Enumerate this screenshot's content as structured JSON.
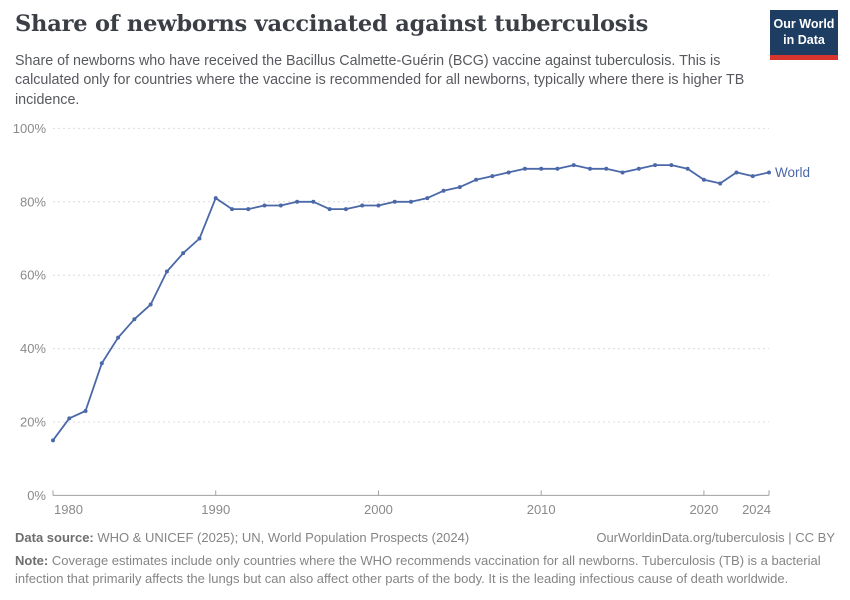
{
  "header": {
    "title": "Share of newborns vaccinated against tuberculosis",
    "subtitle": "Share of newborns who have received the Bacillus Calmette-Guérin (BCG) vaccine against tuberculosis. This is calculated only for countries where the vaccine is recommended for all newborns, typically where there is higher TB incidence.",
    "logo": {
      "line1": "Our World",
      "line2": "in Data"
    }
  },
  "chart_data": {
    "type": "line",
    "title": "Share of newborns vaccinated against tuberculosis",
    "xlabel": "",
    "ylabel": "",
    "xlim": [
      1980,
      2024
    ],
    "ylim": [
      0,
      100
    ],
    "xticks": [
      1980,
      1990,
      2000,
      2010,
      2020,
      2024
    ],
    "yticks": [
      0,
      20,
      40,
      60,
      80,
      100
    ],
    "ytick_suffix": "%",
    "grid": "horizontal-dashed",
    "legend_position": "end-of-line-label",
    "series": [
      {
        "name": "World",
        "color": "#4b68a8",
        "x": [
          1980,
          1981,
          1982,
          1983,
          1984,
          1985,
          1986,
          1987,
          1988,
          1989,
          1990,
          1991,
          1992,
          1993,
          1994,
          1995,
          1996,
          1997,
          1998,
          1999,
          2000,
          2001,
          2002,
          2003,
          2004,
          2005,
          2006,
          2007,
          2008,
          2009,
          2010,
          2011,
          2012,
          2013,
          2014,
          2015,
          2016,
          2017,
          2018,
          2019,
          2020,
          2021,
          2022,
          2023,
          2024
        ],
        "values": [
          15,
          21,
          23,
          36,
          43,
          48,
          52,
          61,
          66,
          70,
          81,
          78,
          78,
          79,
          79,
          80,
          80,
          78,
          78,
          79,
          79,
          80,
          80,
          81,
          83,
          84,
          86,
          87,
          88,
          89,
          89,
          89,
          90,
          89,
          89,
          88,
          89,
          90,
          90,
          89,
          86,
          85,
          88,
          87,
          88
        ]
      }
    ]
  },
  "footer": {
    "datasource_label": "Data source:",
    "datasource_text": " WHO & UNICEF (2025); UN, World Population Prospects (2024)",
    "link": "OurWorldinData.org/tuberculosis | CC BY",
    "note_label": "Note:",
    "note_text": " Coverage estimates include only countries where the WHO recommends vaccination for all newborns. Tuberculosis (TB) is a bacterial infection that primarily affects the lungs but can also affect other parts of the body. It is the leading infectious cause of death worldwide."
  },
  "colors": {
    "series_world": "#4b68a8",
    "logo_background": "#1d3d63",
    "logo_accent_red": "#d8352e",
    "title_text": "#3b3e45",
    "subtitle_text": "#57595e",
    "axis_text": "#8a8a8a",
    "gridline": "#dcdcdc",
    "axis_line": "#a1a1a1",
    "footer_text": "#858585"
  }
}
